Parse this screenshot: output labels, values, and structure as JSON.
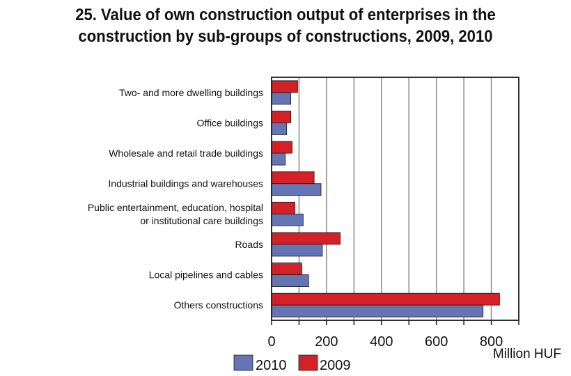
{
  "title_line1": "25. Value of own construction output of enterprises in the",
  "title_line2": "construction by  sub-groups of constructions, 2009, 2010",
  "chart_data": {
    "type": "bar",
    "orientation": "horizontal",
    "categories": [
      [
        "Two- and more dwelling buildings"
      ],
      [
        "Office buildings"
      ],
      [
        "Wholesale and retail trade buildings"
      ],
      [
        "Industrial buildings and warehouses"
      ],
      [
        "Public entertainment, education, hospital",
        "or institutional care buildings"
      ],
      [
        "Roads"
      ],
      [
        "Local pipelines and cables"
      ],
      [
        "Others constructions"
      ]
    ],
    "series": [
      {
        "name": "2009",
        "color": "#d42027",
        "values": [
          95,
          70,
          75,
          155,
          85,
          250,
          110,
          830
        ]
      },
      {
        "name": "2010",
        "color": "#6574b3",
        "values": [
          70,
          55,
          50,
          180,
          115,
          185,
          135,
          770
        ]
      }
    ],
    "xlim": [
      0,
      900
    ],
    "xticks": [
      0,
      200,
      400,
      600,
      800
    ],
    "x_unit": "Million HUF",
    "gridlines": true,
    "legend": {
      "placement": "bottom",
      "order": [
        "2010",
        "2009"
      ]
    }
  }
}
